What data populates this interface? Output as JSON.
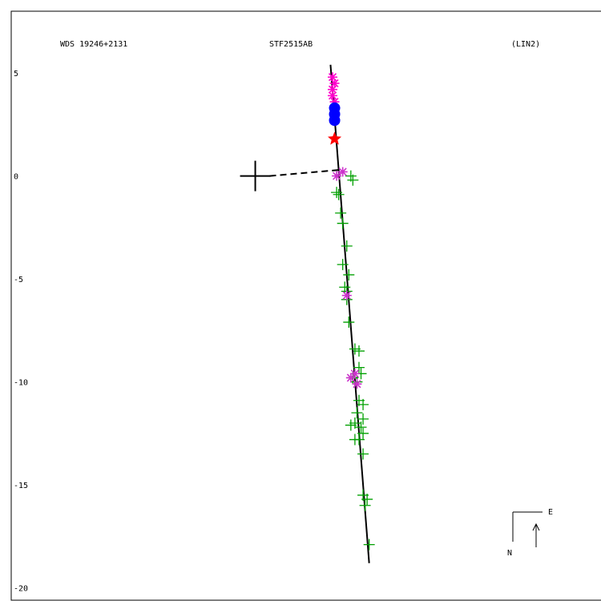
{
  "chart_data": {
    "type": "scatter",
    "header": {
      "left": "WDS 19246+2131",
      "center": "STF2515AB",
      "right": "(LIN2)"
    },
    "y_ticks": [
      5,
      0,
      -5,
      -10,
      -15,
      -20
    ],
    "ylim": [
      -20.6,
      8.0
    ],
    "xlim": [
      -12.0,
      17.0
    ],
    "grid": false,
    "primary_star": {
      "x": 0,
      "y": 0
    },
    "orbit_line": {
      "from": [
        3.7,
        5.4
      ],
      "to": [
        5.6,
        -18.8
      ]
    },
    "node_line": {
      "from": [
        0,
        0
      ],
      "to": [
        4.2,
        0.3
      ]
    },
    "series": [
      {
        "marker": "plus",
        "color": "#00a000",
        "points": [
          [
            4.7,
            0.0
          ],
          [
            4.8,
            -0.2
          ],
          [
            4.0,
            -0.8
          ],
          [
            4.1,
            -0.9
          ],
          [
            4.2,
            -1.8
          ],
          [
            4.3,
            -2.3
          ],
          [
            4.5,
            -3.4
          ],
          [
            4.3,
            -4.3
          ],
          [
            4.6,
            -4.8
          ],
          [
            4.4,
            -5.4
          ],
          [
            4.5,
            -5.6
          ],
          [
            4.5,
            -6.0
          ],
          [
            4.6,
            -7.1
          ],
          [
            4.9,
            -8.4
          ],
          [
            5.1,
            -8.5
          ],
          [
            5.1,
            -9.3
          ],
          [
            5.2,
            -9.6
          ],
          [
            4.8,
            -9.8
          ],
          [
            5.0,
            -10.0
          ],
          [
            5.1,
            -10.9
          ],
          [
            5.3,
            -11.1
          ],
          [
            5.0,
            -11.5
          ],
          [
            5.3,
            -11.8
          ],
          [
            4.9,
            -12.0
          ],
          [
            4.7,
            -12.1
          ],
          [
            5.2,
            -12.2
          ],
          [
            5.3,
            -12.5
          ],
          [
            5.1,
            -12.8
          ],
          [
            4.9,
            -12.8
          ],
          [
            5.3,
            -13.5
          ],
          [
            5.3,
            -15.5
          ],
          [
            5.5,
            -15.7
          ],
          [
            5.4,
            -16.0
          ],
          [
            5.6,
            -17.9
          ]
        ]
      },
      {
        "marker": "asterisk",
        "color": "#cc33cc",
        "points": [
          [
            4.3,
            0.2
          ],
          [
            4.0,
            0.0
          ],
          [
            4.7,
            -9.8
          ],
          [
            4.9,
            -9.6
          ],
          [
            5.0,
            -10.1
          ],
          [
            4.5,
            -5.8
          ]
        ]
      },
      {
        "marker": "asterisk",
        "color": "#ff00cc",
        "points": [
          [
            3.8,
            4.8
          ],
          [
            3.9,
            4.5
          ],
          [
            3.8,
            4.2
          ],
          [
            3.8,
            3.9
          ],
          [
            3.9,
            3.6
          ]
        ]
      },
      {
        "marker": "filled-circle",
        "color": "#0000ff",
        "points": [
          [
            3.9,
            3.3
          ],
          [
            3.9,
            3.0
          ],
          [
            3.9,
            2.7
          ]
        ]
      },
      {
        "marker": "star",
        "color": "#ff0000",
        "points": [
          [
            3.9,
            1.8
          ]
        ]
      }
    ],
    "compass": {
      "east": "E",
      "north": "N"
    }
  }
}
